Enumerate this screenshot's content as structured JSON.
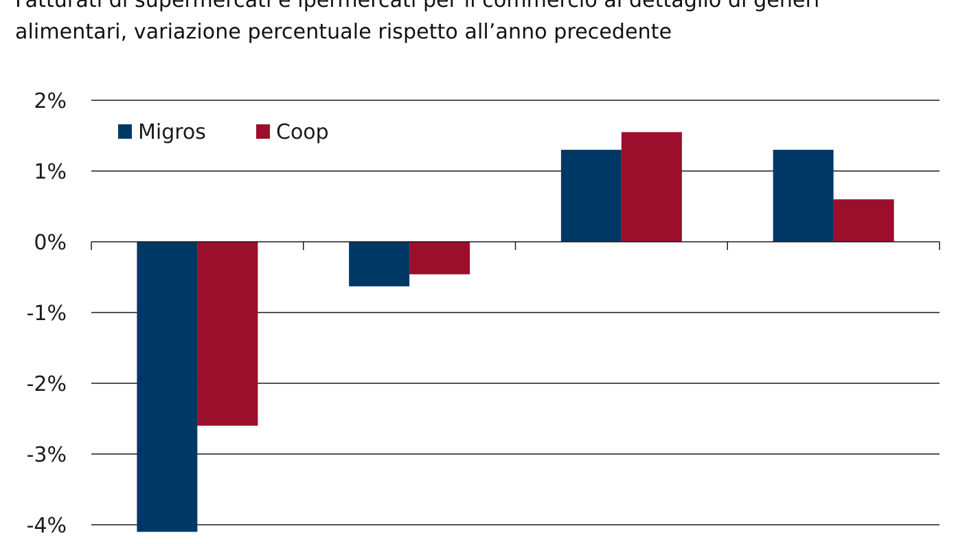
{
  "title_line1": "Fatturati di supermercati e ipermercati per il commercio al dettaglio di generi",
  "title_line2": "alimentari, variazione percentuale rispetto all’anno precedente",
  "colors": {
    "migros": "#003865",
    "coop": "#9b0e2c",
    "grid": "#1a1a1a"
  },
  "chart_data": {
    "type": "bar",
    "categories": [
      "",
      "",
      "",
      ""
    ],
    "series": [
      {
        "name": "Migros",
        "values": [
          -4.1,
          -0.63,
          1.3,
          1.3
        ]
      },
      {
        "name": "Coop",
        "values": [
          -2.6,
          -0.46,
          1.55,
          0.6
        ]
      }
    ],
    "ylim": [
      -4,
      2
    ],
    "yticks": [
      2,
      1,
      0,
      -1,
      -2,
      -3,
      -4
    ],
    "ytick_labels": [
      "2%",
      "1%",
      "0%",
      "-1%",
      "-2%",
      "-3%",
      "-4%"
    ],
    "grid": true,
    "legend_position": "top-left"
  }
}
